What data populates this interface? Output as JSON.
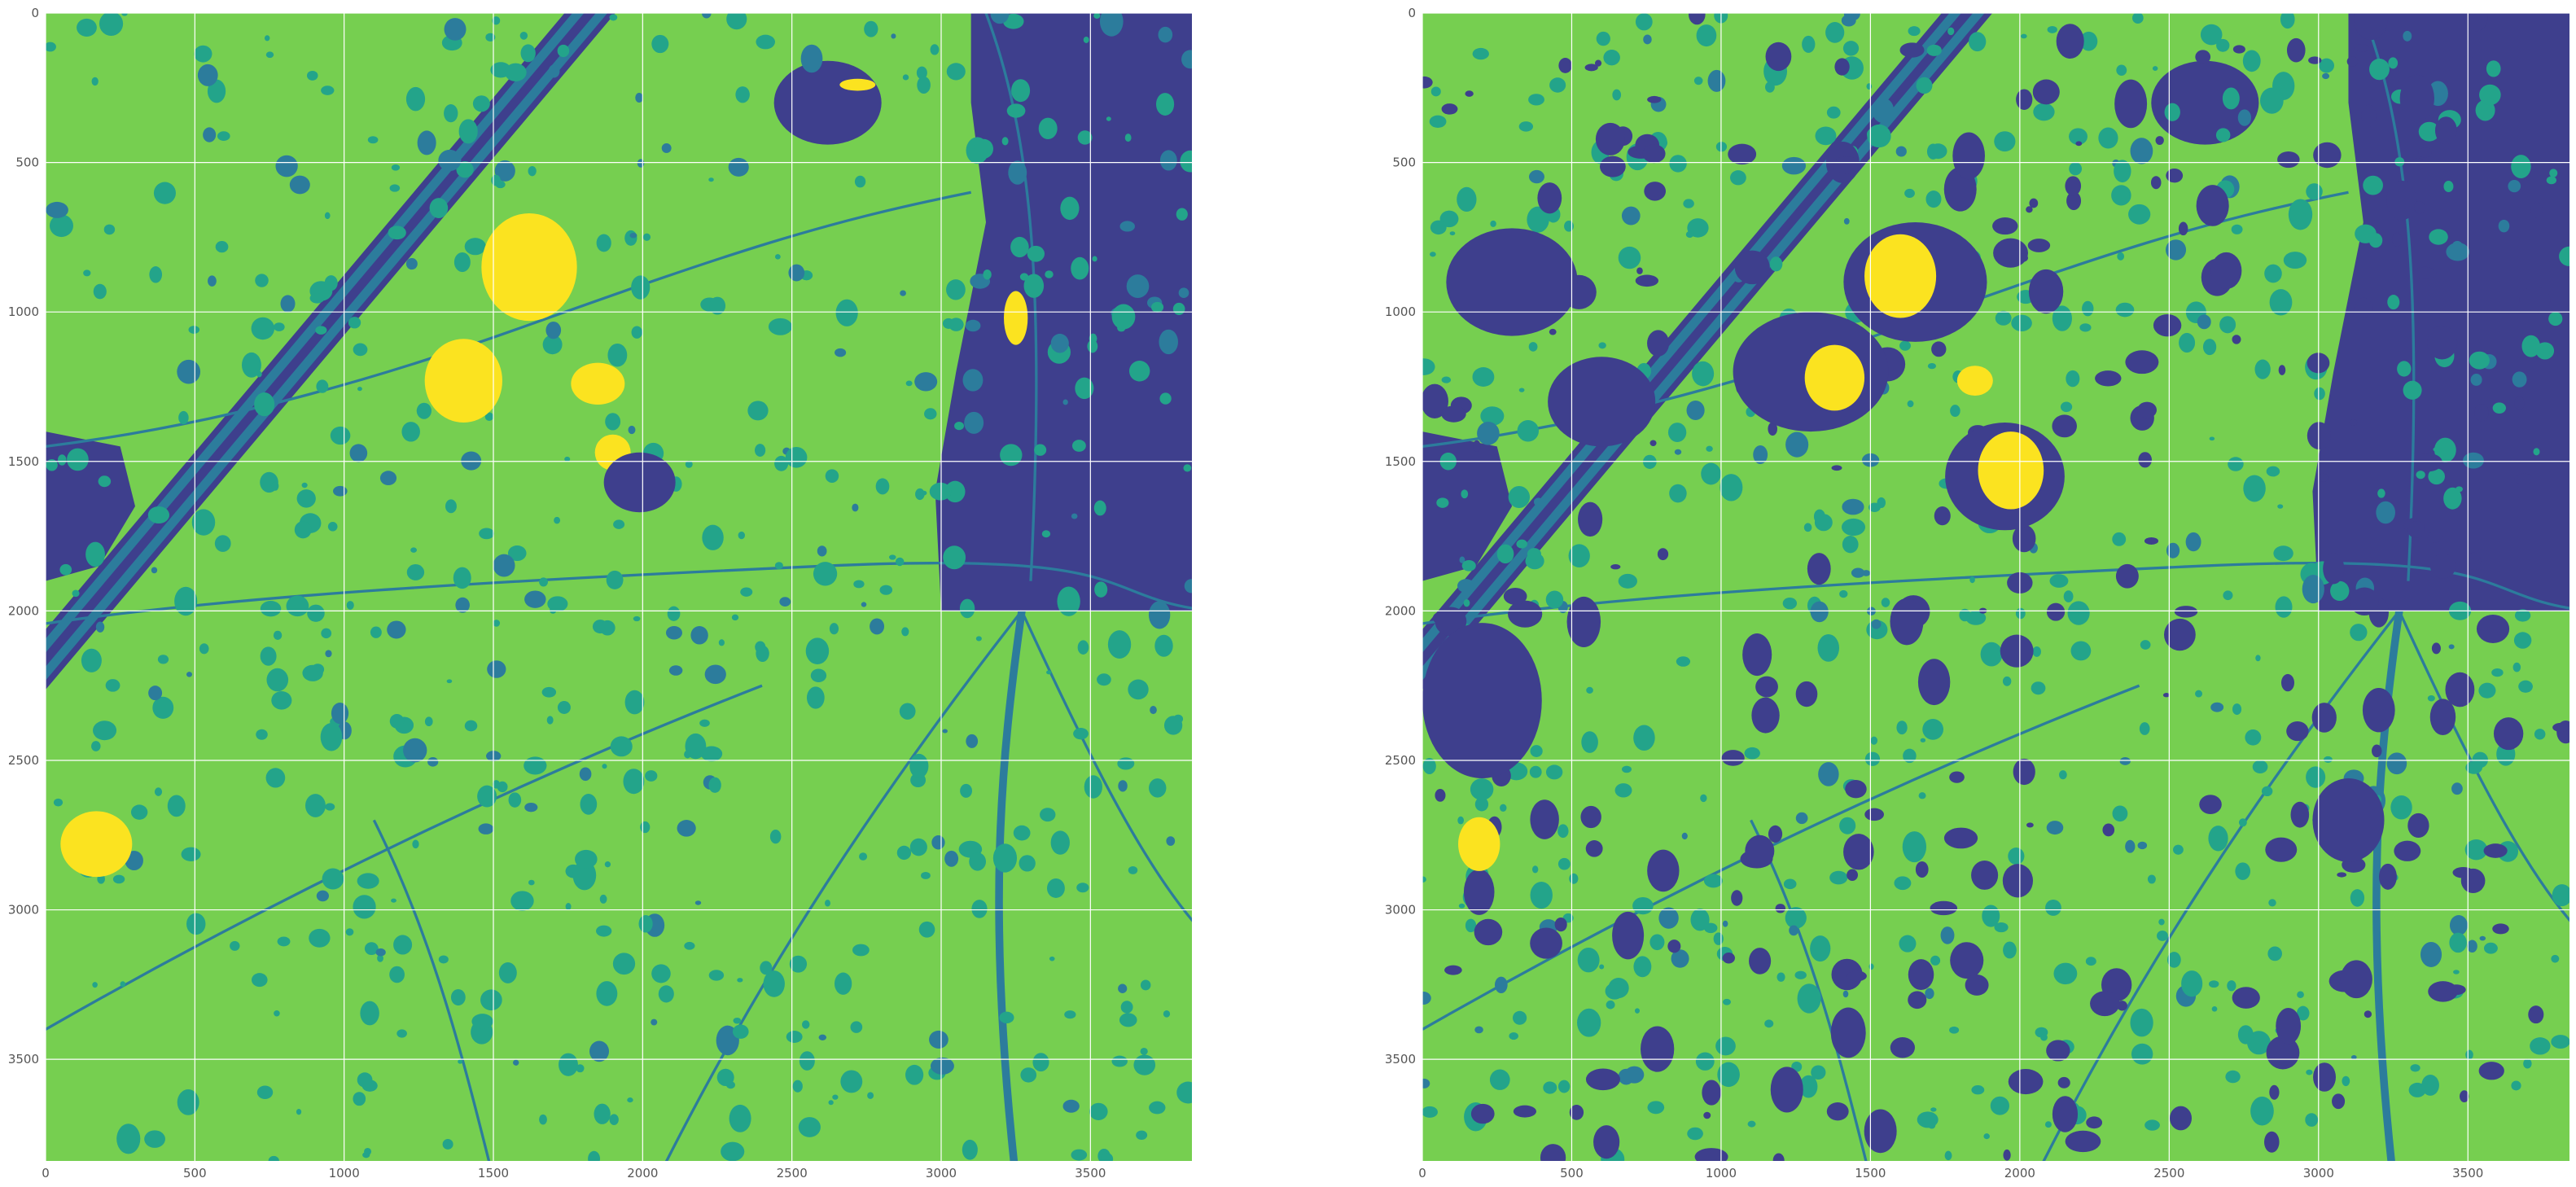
{
  "palette": {
    "c0": "#3e3f8d",
    "c1": "#2c7c9c",
    "c2": "#23a48a",
    "c3": "#76cf50",
    "c4": "#fbe320",
    "grid": "#ffffff",
    "tick_text": "#555555",
    "background": "#ffffff"
  },
  "chart_data": [
    {
      "type": "heatmap",
      "title": "",
      "xlabel": "",
      "ylabel": "",
      "xlim": [
        0,
        3840
      ],
      "ylim": [
        3840,
        0
      ],
      "grid": true,
      "x_ticks": [
        0,
        500,
        1000,
        1500,
        2000,
        2500,
        3000,
        3500
      ],
      "y_ticks": [
        0,
        500,
        1000,
        1500,
        2000,
        2500,
        3000,
        3500
      ],
      "color_levels": 5
    },
    {
      "type": "heatmap",
      "title": "",
      "xlabel": "",
      "ylabel": "",
      "xlim": [
        0,
        3840
      ],
      "ylim": [
        3840,
        0
      ],
      "grid": true,
      "x_ticks": [
        0,
        500,
        1000,
        1500,
        2000,
        2500,
        3000,
        3500
      ],
      "y_ticks": [
        0,
        500,
        1000,
        1500,
        2000,
        2500,
        3000,
        3500
      ],
      "color_levels": 5
    }
  ]
}
